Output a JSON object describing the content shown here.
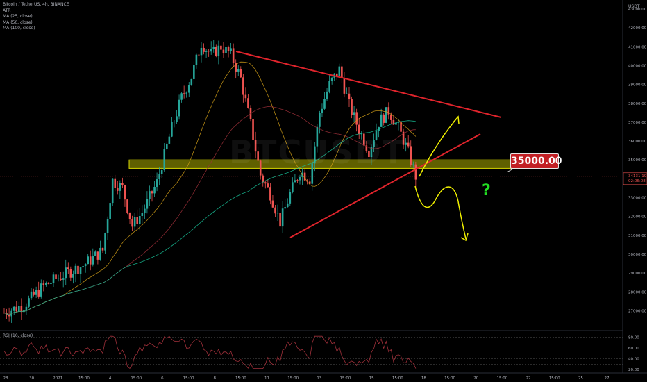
{
  "header": {
    "symbol_line": "Bitcoin / TetherUS, 4h, BINANCE",
    "indicators": [
      "ATR",
      "MA (25, close)",
      "MA (50, close)",
      "MA (100, close)"
    ],
    "watermark": "BTCUSDT"
  },
  "price_axis": {
    "currency": "USDT",
    "ticks": [
      "43000.00",
      "42000.00",
      "41000.00",
      "40000.00",
      "39000.00",
      "38000.00",
      "37000.00",
      "36000.00",
      "35000.00",
      "34000.00",
      "33000.00",
      "32000.00",
      "31000.00",
      "30000.00",
      "29000.00",
      "28000.00",
      "27000.00"
    ],
    "last_price": "34131.19",
    "countdown": "02:06:08"
  },
  "rsi": {
    "label": "RSI (10, close)",
    "ticks": [
      "80.00",
      "60.00",
      "40.00",
      "20.00"
    ]
  },
  "time_axis": {
    "ticks": [
      "28",
      "30",
      "2021",
      "15:00",
      "4",
      "15:00",
      "6",
      "15:00",
      "8",
      "15:00",
      "11",
      "15:00",
      "13",
      "15:00",
      "15",
      "15:00",
      "18",
      "15:00",
      "20",
      "15:00",
      "22",
      "15:00",
      "25",
      "27"
    ]
  },
  "annotation": {
    "level_label": "35000.00",
    "question": "?"
  },
  "colors": {
    "bull": "#26a69a",
    "bear": "#ef5350",
    "trendline": "#e0242c",
    "zone": "#d4d400",
    "arrow": "#f0f000",
    "callout": "#c21f24",
    "ma25": "#d4a017",
    "ma50": "#a0303a",
    "ma100": "#19c39a",
    "rsi": "#a0303a",
    "question": "#22dd22"
  },
  "chart_data": {
    "type": "candlestick",
    "title": "Bitcoin / TetherUS, 4h, BINANCE",
    "ylim": [
      26500,
      43500
    ],
    "approx_close_path": [
      [
        0,
        26900
      ],
      [
        8,
        27300
      ],
      [
        16,
        28300
      ],
      [
        24,
        28900
      ],
      [
        32,
        29400
      ],
      [
        40,
        30200
      ],
      [
        44,
        33900
      ],
      [
        48,
        33500
      ],
      [
        52,
        31500
      ],
      [
        56,
        32200
      ],
      [
        62,
        33800
      ],
      [
        68,
        36700
      ],
      [
        72,
        38300
      ],
      [
        76,
        39400
      ],
      [
        80,
        41200
      ],
      [
        84,
        40600
      ],
      [
        88,
        41000
      ],
      [
        92,
        40600
      ],
      [
        96,
        39300
      ],
      [
        100,
        36900
      ],
      [
        104,
        34200
      ],
      [
        108,
        33200
      ],
      [
        112,
        31700
      ],
      [
        116,
        33200
      ],
      [
        120,
        34400
      ],
      [
        124,
        34000
      ],
      [
        128,
        37500
      ],
      [
        132,
        39000
      ],
      [
        136,
        39800
      ],
      [
        140,
        37900
      ],
      [
        144,
        36600
      ],
      [
        148,
        35500
      ],
      [
        152,
        37000
      ],
      [
        156,
        37600
      ],
      [
        160,
        36700
      ],
      [
        164,
        35400
      ],
      [
        167,
        34130
      ]
    ],
    "key_level": 35000,
    "last_price": 34131.19
  }
}
